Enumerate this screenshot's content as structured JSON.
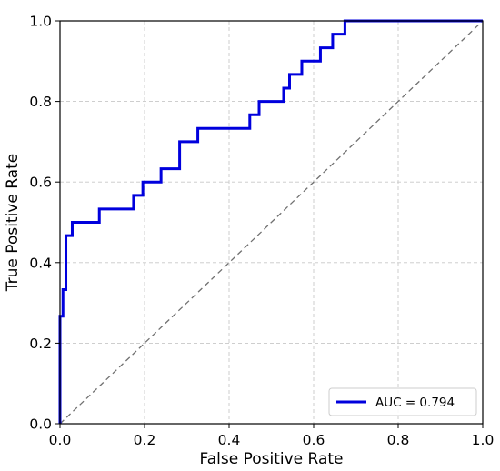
{
  "colors": {
    "roc": "#0000dd",
    "diagonal": "#707070",
    "grid": "#c8c8c8",
    "axis": "#000000",
    "background": "#ffffff",
    "legend_border": "#cccccc"
  },
  "chart_data": {
    "type": "line",
    "title": "",
    "xlabel": "False Positive Rate",
    "ylabel": "True Positive Rate",
    "xlim": [
      0.0,
      1.0
    ],
    "ylim": [
      0.0,
      1.0
    ],
    "xticks": [
      "0.0",
      "0.2",
      "0.4",
      "0.6",
      "0.8",
      "1.0"
    ],
    "yticks": [
      "0.0",
      "0.2",
      "0.4",
      "0.6",
      "0.8",
      "1.0"
    ],
    "grid": true,
    "grid_style": "dashed",
    "legend_position": "lower right",
    "series": [
      {
        "name": "AUC = 0.794",
        "style": "solid",
        "x": [
          0.0,
          0.0,
          0.0,
          0.007,
          0.007,
          0.014,
          0.014,
          0.029,
          0.029,
          0.093,
          0.093,
          0.174,
          0.174,
          0.196,
          0.196,
          0.239,
          0.239,
          0.283,
          0.283,
          0.326,
          0.326,
          0.449,
          0.449,
          0.471,
          0.471,
          0.529,
          0.529,
          0.543,
          0.543,
          0.572,
          0.572,
          0.616,
          0.616,
          0.645,
          0.645,
          0.674,
          0.674,
          1.0
        ],
        "y": [
          0.0,
          0.267,
          0.267,
          0.267,
          0.333,
          0.333,
          0.467,
          0.467,
          0.5,
          0.5,
          0.533,
          0.533,
          0.567,
          0.567,
          0.6,
          0.6,
          0.633,
          0.633,
          0.7,
          0.7,
          0.733,
          0.733,
          0.767,
          0.767,
          0.8,
          0.8,
          0.833,
          0.833,
          0.867,
          0.867,
          0.9,
          0.9,
          0.933,
          0.933,
          0.967,
          0.967,
          1.0,
          1.0
        ]
      },
      {
        "style": "dashed",
        "x": [
          0.0,
          1.0
        ],
        "y": [
          0.0,
          1.0
        ]
      }
    ]
  }
}
